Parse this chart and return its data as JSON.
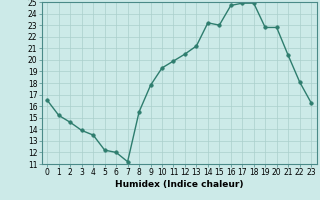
{
  "title": "",
  "xlabel": "Humidex (Indice chaleur)",
  "ylabel": "",
  "x_values": [
    0,
    1,
    2,
    3,
    4,
    5,
    6,
    7,
    8,
    9,
    10,
    11,
    12,
    13,
    14,
    15,
    16,
    17,
    18,
    19,
    20,
    21,
    22,
    23
  ],
  "y_values": [
    16.5,
    15.2,
    14.6,
    13.9,
    13.5,
    12.2,
    12.0,
    11.2,
    15.5,
    17.8,
    19.3,
    19.9,
    20.5,
    21.2,
    23.2,
    23.0,
    24.7,
    24.9,
    24.9,
    22.8,
    22.8,
    20.4,
    18.1,
    16.3
  ],
  "line_color": "#2e7d6e",
  "marker_color": "#2e7d6e",
  "bg_color": "#cceae8",
  "grid_color": "#aacfcc",
  "xlim": [
    -0.5,
    23.5
  ],
  "ylim": [
    11,
    25
  ],
  "yticks": [
    11,
    12,
    13,
    14,
    15,
    16,
    17,
    18,
    19,
    20,
    21,
    22,
    23,
    24,
    25
  ],
  "xticks": [
    0,
    1,
    2,
    3,
    4,
    5,
    6,
    7,
    8,
    9,
    10,
    11,
    12,
    13,
    14,
    15,
    16,
    17,
    18,
    19,
    20,
    21,
    22,
    23
  ],
  "xlabel_fontsize": 6.5,
  "tick_fontsize": 5.5,
  "marker_size": 2.5,
  "line_width": 1.0
}
